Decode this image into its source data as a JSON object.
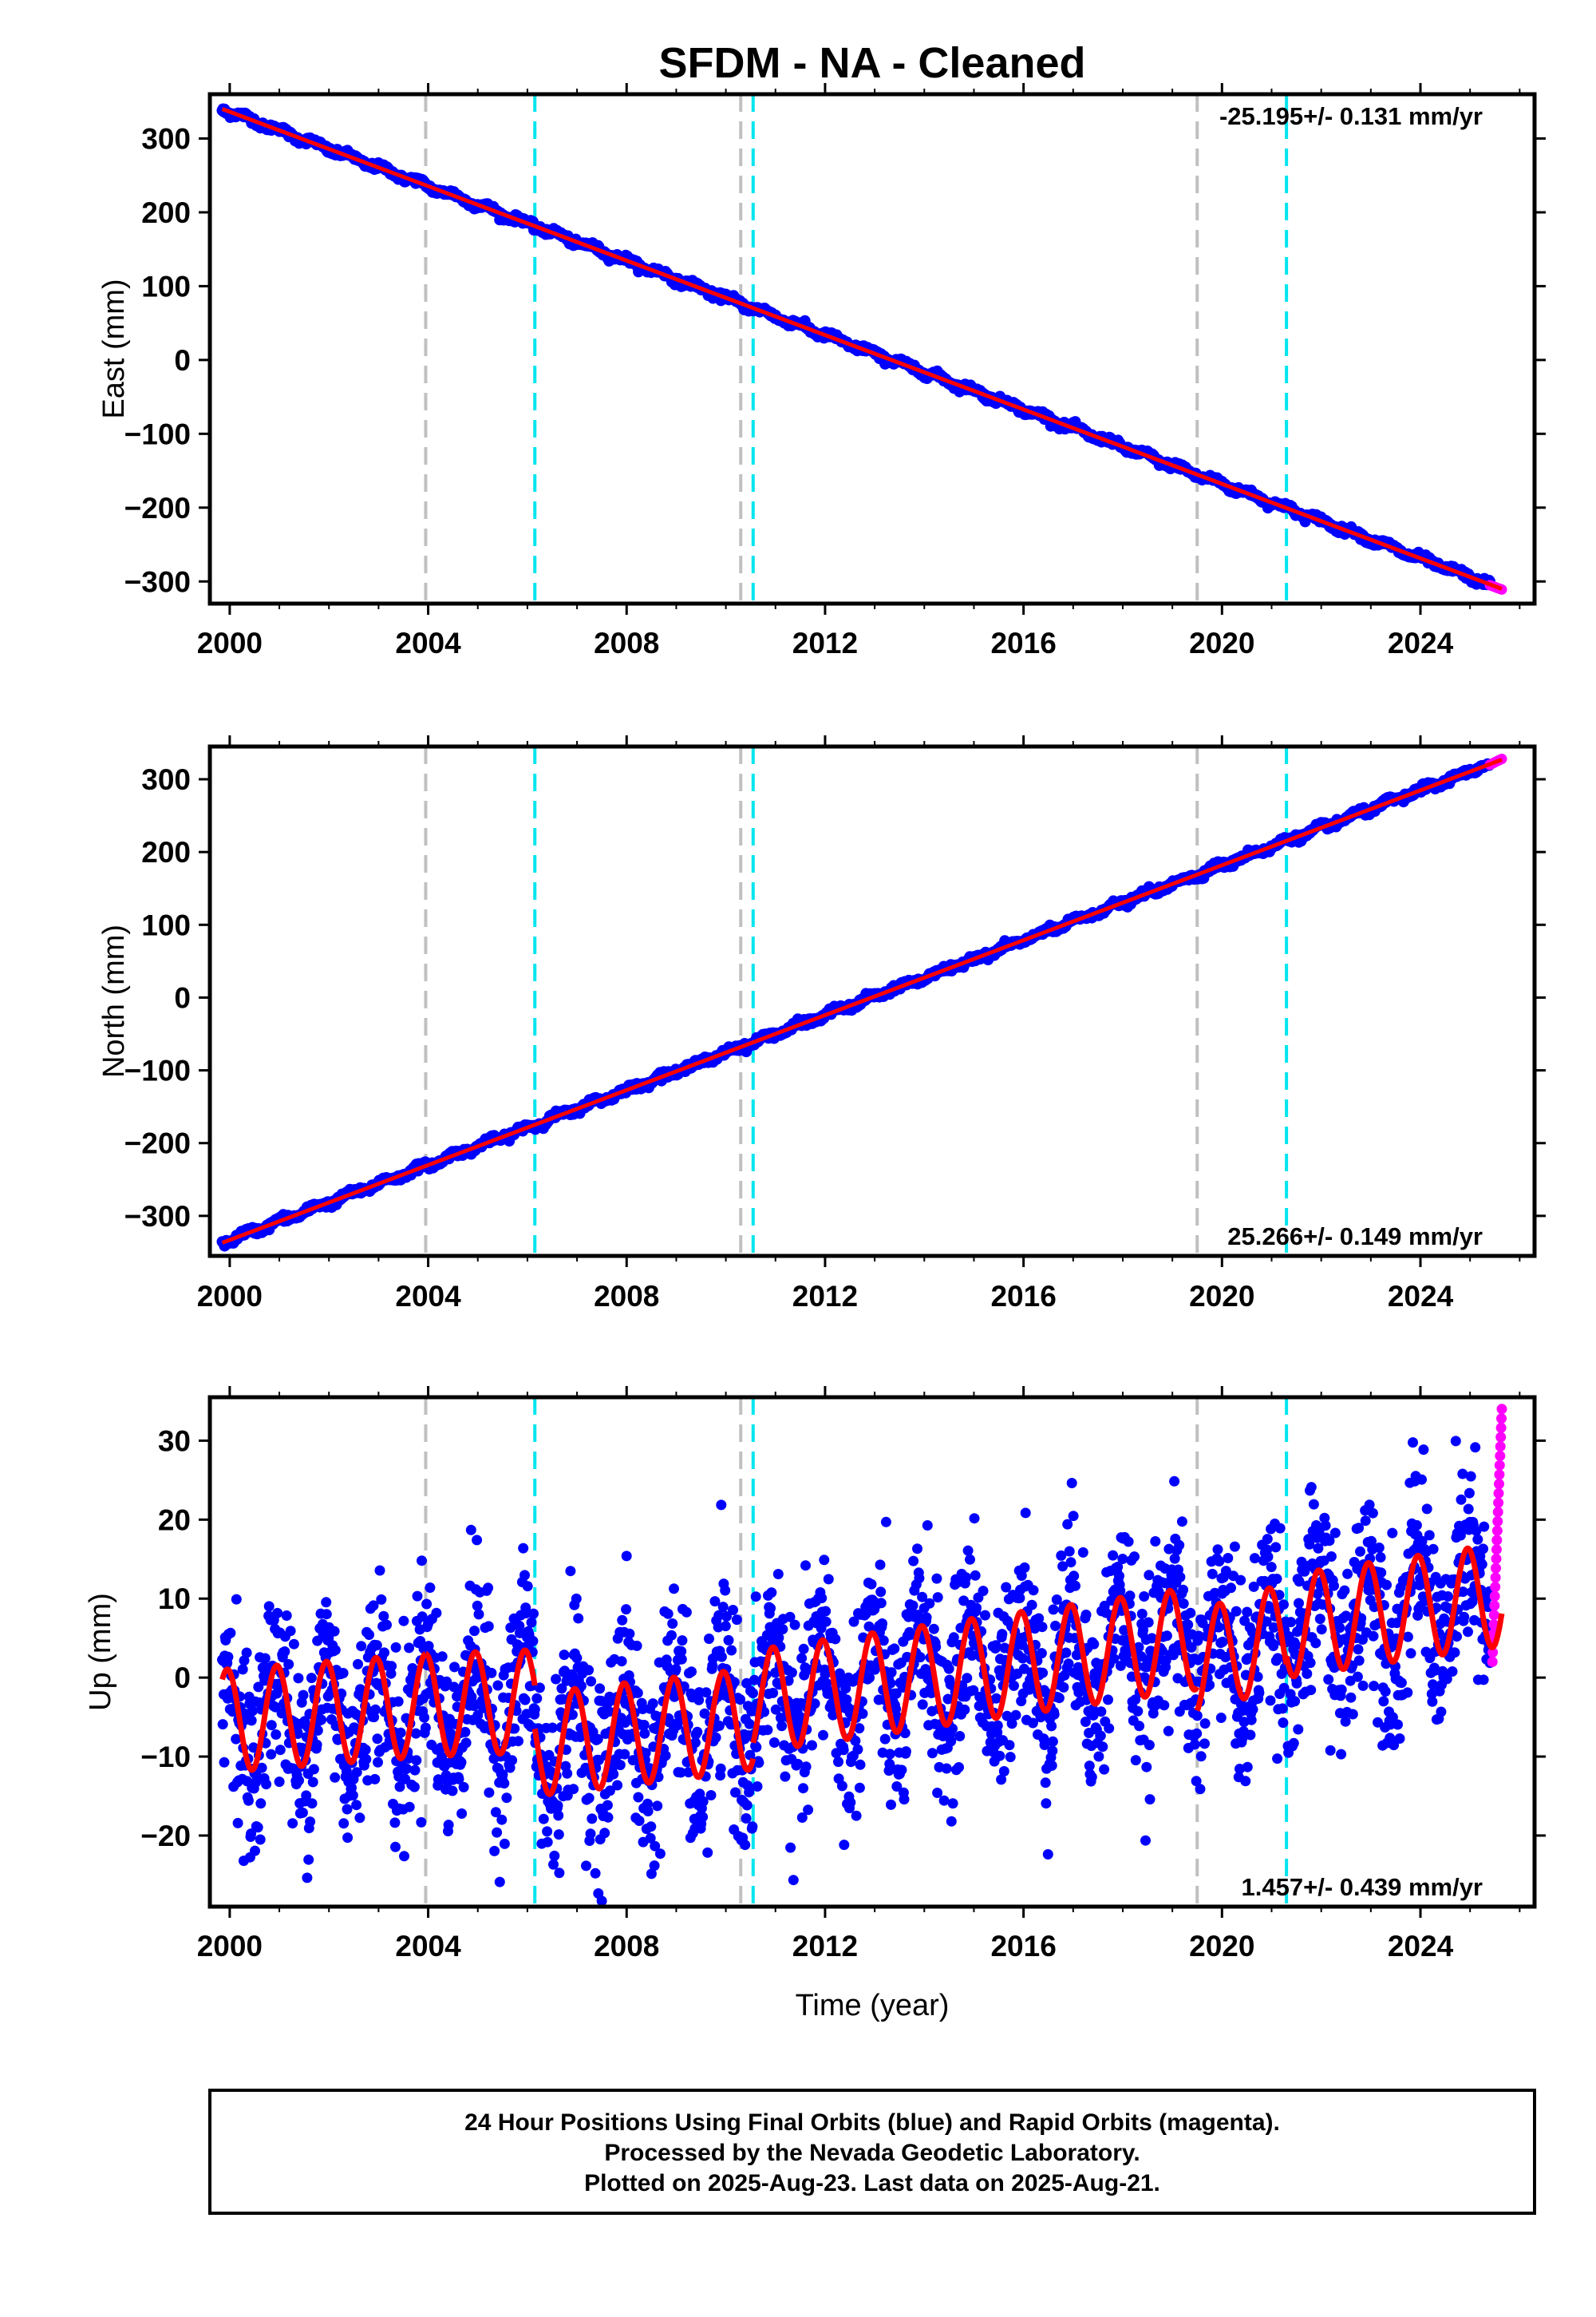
{
  "title": "SFDM  - NA - Cleaned",
  "chart_data": [
    {
      "type": "scatter",
      "component": "East",
      "ylabel": "East (mm)",
      "xlabel": "",
      "xlim": [
        1999.6,
        2026.3
      ],
      "ylim": [
        -330,
        360
      ],
      "xticks": [
        2000,
        2004,
        2008,
        2012,
        2016,
        2020,
        2024
      ],
      "xtick_labels": [
        "2000",
        "2004",
        "2008",
        "2012",
        "2016",
        "2020",
        "2024"
      ],
      "yticks": [
        -300,
        -200,
        -100,
        0,
        100,
        200,
        300
      ],
      "ytick_labels": [
        "−300",
        "−200",
        "−100",
        "0",
        "100",
        "200",
        "300"
      ],
      "rate_label": "-25.195+/- 0.131 mm/yr",
      "rate_position": "top-right",
      "final_orbits": {
        "start": 1999.85,
        "end": 2025.4,
        "start_value": 343,
        "end_value": -305
      },
      "rapid_orbits": {
        "start": 2025.4,
        "end": 2025.64,
        "start_value": -305,
        "end_value": -311
      },
      "fit_line": {
        "x": [
          1999.85,
          2025.64
        ],
        "y": [
          340,
          -310
        ]
      },
      "equipment_changes": [
        2003.95,
        2010.3,
        2019.5
      ],
      "earthquakes": [
        2006.15,
        2010.55,
        2021.3
      ]
    },
    {
      "type": "scatter",
      "component": "North",
      "ylabel": "North (mm)",
      "xlabel": "",
      "xlim": [
        1999.6,
        2026.3
      ],
      "ylim": [
        -355,
        345
      ],
      "xticks": [
        2000,
        2004,
        2008,
        2012,
        2016,
        2020,
        2024
      ],
      "xtick_labels": [
        "2000",
        "2004",
        "2008",
        "2012",
        "2016",
        "2020",
        "2024"
      ],
      "yticks": [
        -300,
        -200,
        -100,
        0,
        100,
        200,
        300
      ],
      "ytick_labels": [
        "−300",
        "−200",
        "−100",
        "0",
        "100",
        "200",
        "300"
      ],
      "rate_label": "25.266+/- 0.149 mm/yr",
      "rate_position": "bottom-right",
      "final_orbits": {
        "start": 1999.85,
        "end": 2025.4,
        "start_value": -340,
        "end_value": 320
      },
      "rapid_orbits": {
        "start": 2025.4,
        "end": 2025.64,
        "start_value": 320,
        "end_value": 328
      },
      "fit_line": {
        "x": [
          1999.85,
          2025.64
        ],
        "y": [
          -337,
          327
        ]
      },
      "equipment_changes": [
        2003.95,
        2010.3,
        2019.5
      ],
      "earthquakes": [
        2006.15,
        2010.55,
        2021.3
      ]
    },
    {
      "type": "scatter",
      "component": "Up",
      "ylabel": "Up (mm)",
      "xlabel": "Time (year)",
      "xlim": [
        1999.6,
        2026.3
      ],
      "ylim": [
        -29,
        35.5
      ],
      "xticks": [
        2000,
        2004,
        2008,
        2012,
        2016,
        2020,
        2024
      ],
      "xtick_labels": [
        "2000",
        "2004",
        "2008",
        "2012",
        "2016",
        "2020",
        "2024"
      ],
      "yticks": [
        -20,
        -10,
        0,
        10,
        20,
        30
      ],
      "ytick_labels": [
        "−20",
        "−10",
        "0",
        "10",
        "20",
        "30"
      ],
      "rate_label": "1.457+/- 0.439 mm/yr",
      "rate_position": "bottom-right",
      "final_orbits": {
        "start": 1999.85,
        "end": 2025.4,
        "start_value": -5,
        "end_value": 12,
        "scatter": 6,
        "seasonal_amplitude": 6.5
      },
      "rapid_orbits": {
        "start": 2025.45,
        "end": 2025.64,
        "min": 2,
        "max": 34
      },
      "fit_line": {
        "seasonal_amplitude": 6.5,
        "segments": [
          {
            "start": 1999.85,
            "end": 2003.95,
            "start_value": -5.5,
            "end_value": -3.5
          },
          {
            "start": 2003.95,
            "end": 2006.15,
            "start_value": -3.5,
            "end_value": -3
          },
          {
            "start": 2006.15,
            "end": 2010.3,
            "start_value": -8.5,
            "end_value": -5.5
          },
          {
            "start": 2010.3,
            "end": 2010.55,
            "start_value": -5.5,
            "end_value": -5
          },
          {
            "start": 2010.55,
            "end": 2019.5,
            "start_value": -3,
            "end_value": 5
          },
          {
            "start": 2019.5,
            "end": 2021.3,
            "start_value": 2,
            "end_value": 5.5
          },
          {
            "start": 2021.3,
            "end": 2025.64,
            "start_value": 6.5,
            "end_value": 10.5
          }
        ]
      },
      "equipment_changes": [
        2003.95,
        2010.3,
        2019.5
      ],
      "earthquakes": [
        2006.15,
        2010.55,
        2021.3
      ]
    }
  ],
  "colors": {
    "final_orbits": "#0000ff",
    "rapid_orbits": "#ff00ff",
    "fit": "#ff0000",
    "equipment_change": "#c0c0c0",
    "earthquake": "#00e5ee"
  },
  "footer": {
    "line1": "24 Hour Positions Using Final Orbits (blue) and Rapid Orbits (magenta).",
    "line2": "Processed by the Nevada Geodetic Laboratory.",
    "line3": "Plotted on 2025-Aug-23. Last data on 2025-Aug-21."
  }
}
